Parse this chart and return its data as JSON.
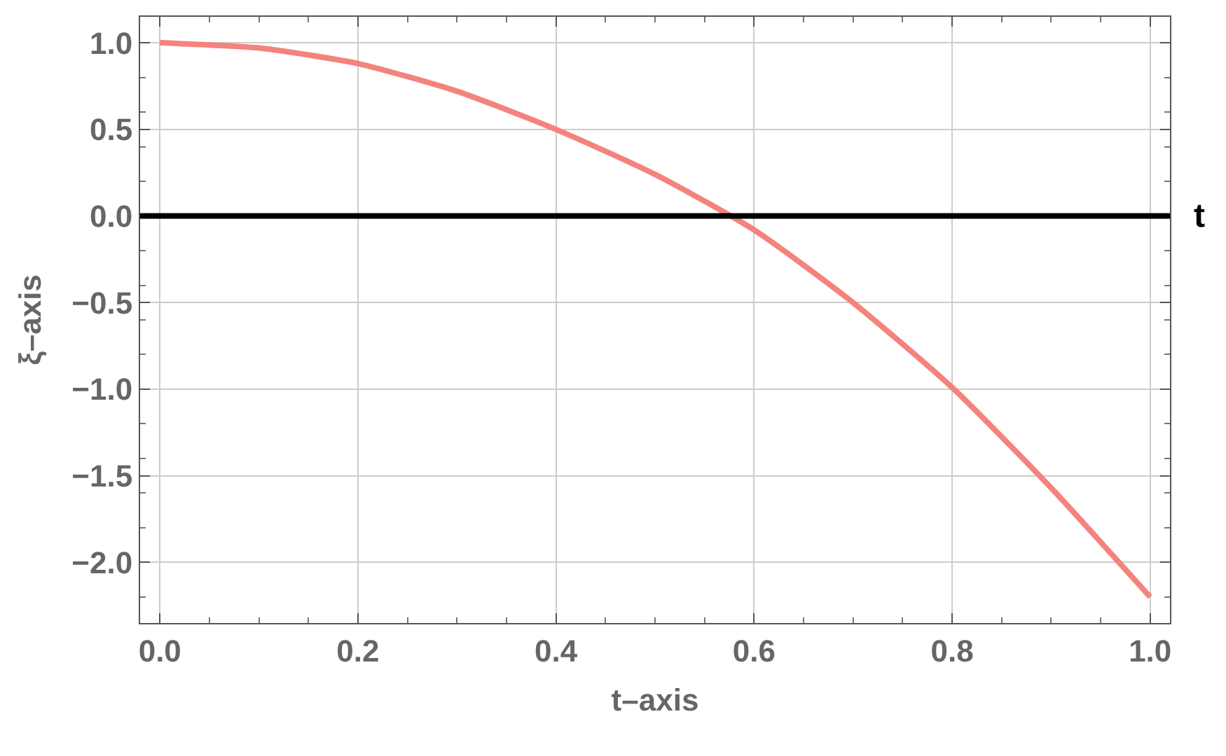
{
  "chart_data": {
    "type": "line",
    "xlabel": "t–axis",
    "ylabel": "ξ–axis",
    "x": [
      0,
      0.1,
      0.2,
      0.3,
      0.4,
      0.5,
      0.6,
      0.7,
      0.8,
      0.9,
      1.0
    ],
    "series": [
      {
        "color": "#f4837d",
        "values": [
          1.0,
          0.97,
          0.88,
          0.72,
          0.5,
          0.24,
          -0.08,
          -0.5,
          -0.99,
          -1.57,
          -2.2
        ]
      }
    ],
    "xlim": [
      -0.02,
      1.02
    ],
    "ylim": [
      -2.35,
      1.15
    ],
    "xticks": [
      {
        "value": 0,
        "label": "0.0"
      },
      {
        "value": 0.2,
        "label": "0.2"
      },
      {
        "value": 0.4,
        "label": "0.4"
      },
      {
        "value": 0.6,
        "label": "0.6"
      },
      {
        "value": 0.8,
        "label": "0.8"
      },
      {
        "value": 1,
        "label": "1.0"
      }
    ],
    "yticks": [
      {
        "value": 1,
        "label": "1.0"
      },
      {
        "value": 0.5,
        "label": "0.5"
      },
      {
        "value": 0,
        "label": "0.0"
      },
      {
        "value": -0.5,
        "label": "−0.5"
      },
      {
        "value": -1,
        "label": "−1.0"
      },
      {
        "value": -1.5,
        "label": "−1.5"
      },
      {
        "value": -2,
        "label": "−2.0"
      }
    ],
    "ref_lines": [
      {
        "axis": "y",
        "value": 0,
        "label": "t",
        "color": "#000000"
      }
    ],
    "grid": true,
    "line_style": "solid",
    "marker": "none"
  }
}
